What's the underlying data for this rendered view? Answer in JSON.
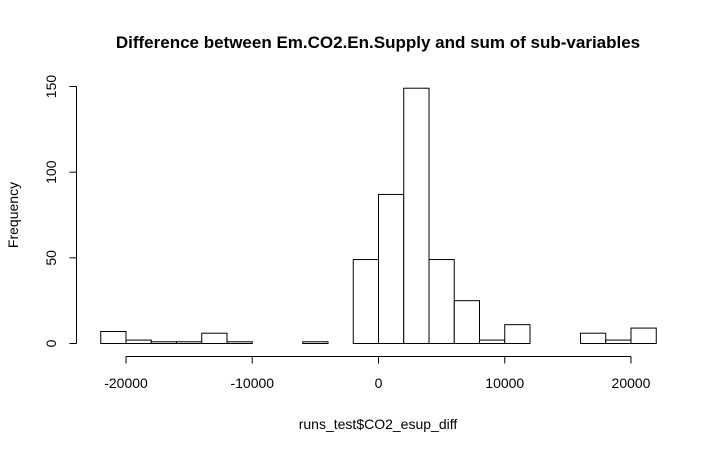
{
  "chart_data": {
    "type": "bar",
    "title": "Difference between Em.CO2.En.Supply and sum of sub-variables",
    "xlabel": "runs_test$CO2_esup_diff",
    "ylabel": "Frequency",
    "bin_width": 2000,
    "bin_start": -22000,
    "x_ticks": [
      -20000,
      -10000,
      0,
      10000,
      20000
    ],
    "x_tick_labels": [
      "-20000",
      "-10000",
      "0",
      "10000",
      "20000"
    ],
    "x_axis_range": [
      -20000,
      20000
    ],
    "y_ticks": [
      0,
      50,
      100,
      150
    ],
    "y_tick_labels": [
      "0",
      "50",
      "100",
      "150"
    ],
    "ylim": [
      0,
      150
    ],
    "bins": [
      {
        "x0": -22000,
        "x1": -20000,
        "count": 7
      },
      {
        "x0": -20000,
        "x1": -18000,
        "count": 2
      },
      {
        "x0": -18000,
        "x1": -16000,
        "count": 1
      },
      {
        "x0": -16000,
        "x1": -14000,
        "count": 1
      },
      {
        "x0": -14000,
        "x1": -12000,
        "count": 6
      },
      {
        "x0": -12000,
        "x1": -10000,
        "count": 1
      },
      {
        "x0": -10000,
        "x1": -8000,
        "count": 0
      },
      {
        "x0": -8000,
        "x1": -6000,
        "count": 0
      },
      {
        "x0": -6000,
        "x1": -4000,
        "count": 1
      },
      {
        "x0": -4000,
        "x1": -2000,
        "count": 0
      },
      {
        "x0": -2000,
        "x1": 0,
        "count": 49
      },
      {
        "x0": 0,
        "x1": 2000,
        "count": 87
      },
      {
        "x0": 2000,
        "x1": 4000,
        "count": 149
      },
      {
        "x0": 4000,
        "x1": 6000,
        "count": 49
      },
      {
        "x0": 6000,
        "x1": 8000,
        "count": 25
      },
      {
        "x0": 8000,
        "x1": 10000,
        "count": 2
      },
      {
        "x0": 10000,
        "x1": 12000,
        "count": 11
      },
      {
        "x0": 12000,
        "x1": 14000,
        "count": 0
      },
      {
        "x0": 14000,
        "x1": 16000,
        "count": 0
      },
      {
        "x0": 16000,
        "x1": 18000,
        "count": 6
      },
      {
        "x0": 18000,
        "x1": 20000,
        "count": 2
      },
      {
        "x0": 20000,
        "x1": 22000,
        "count": 9
      }
    ],
    "bar_fill": "#ffffff",
    "bar_stroke": "#000000",
    "grid": false,
    "legend": "none"
  }
}
